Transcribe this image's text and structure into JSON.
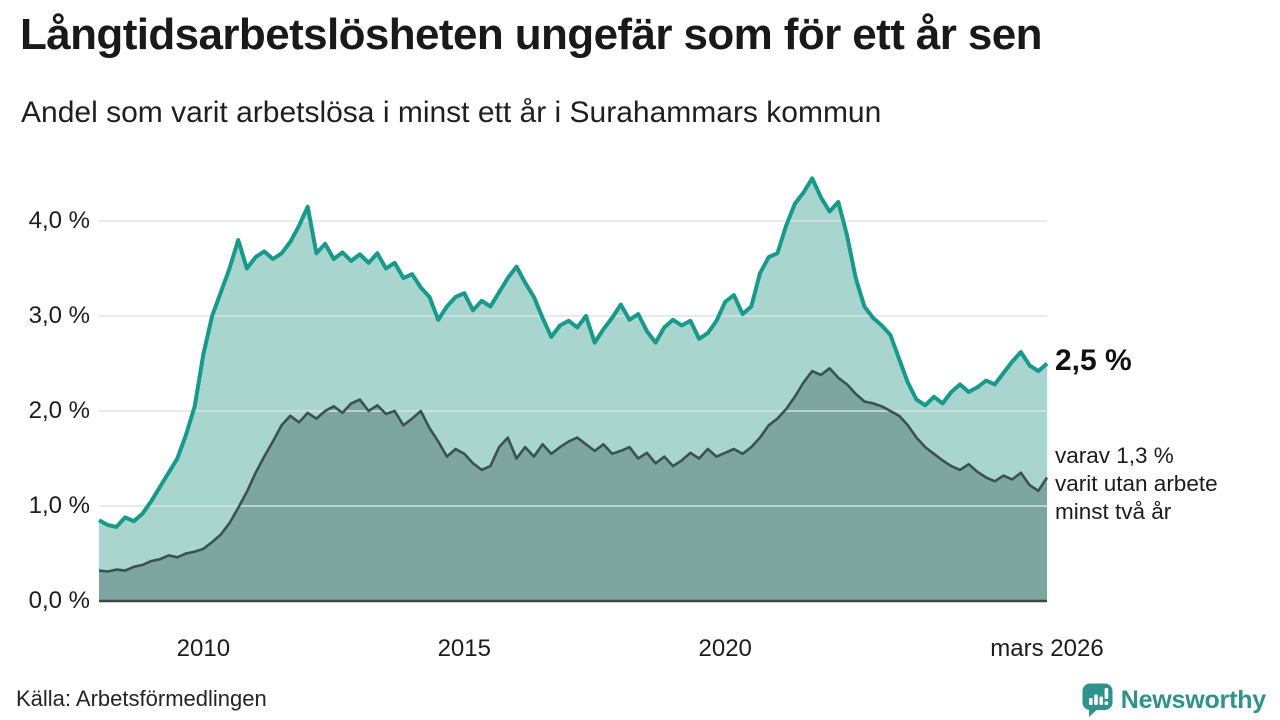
{
  "header": {
    "title": "Långtidsarbetslösheten ungefär som för ett år sen",
    "subtitle": "Andel som varit arbetslösa i minst ett år i Surahammars kommun"
  },
  "annotations": {
    "latest_value": "2,5 %",
    "secondary_line1": "varav 1,3 %",
    "secondary_line2": "varit utan arbete",
    "secondary_line3": "minst två år"
  },
  "footer": {
    "source": "Källa: Arbetsförmedlingen",
    "logo_text": "Newsworthy"
  },
  "colors": {
    "line_total": "#17998c",
    "fill_total": "#a8d5ce",
    "line_two_years": "#3a534f",
    "fill_two_years": "#7ca69f",
    "baseline": "#3b4a48",
    "gridline": "rgba(222,225,230,0.7)",
    "brand_teal": "#2e938b"
  },
  "chart_data": {
    "type": "area",
    "title": "Långtidsarbetslösheten ungefär som för ett år sen",
    "subtitle": "Andel som varit arbetslösa i minst ett år i Surahammars kommun",
    "unit": "%",
    "x_start_year": 2008.0,
    "x_step_years": 0.1666667,
    "x_end_label_year": 2026.1667,
    "ylim": [
      0,
      4.7
    ],
    "grid": "horizontal-only",
    "legend_position": "right-annotations",
    "y_ticks": [
      {
        "value": 0,
        "label": "0,0 %"
      },
      {
        "value": 1,
        "label": "1,0 %"
      },
      {
        "value": 2,
        "label": "2,0 %"
      },
      {
        "value": 3,
        "label": "3,0 %"
      },
      {
        "value": 4,
        "label": "4,0 %"
      }
    ],
    "x_ticks": [
      {
        "year": 2010,
        "label": "2010"
      },
      {
        "year": 2015,
        "label": "2015"
      },
      {
        "year": 2020,
        "label": "2020"
      },
      {
        "year": 2026.1667,
        "label": "mars 2026"
      }
    ],
    "series": [
      {
        "name": "Andel arbetslösa minst ett år",
        "end_label": "2,5 %",
        "end_value": 2.5,
        "values": [
          0.85,
          0.8,
          0.78,
          0.88,
          0.84,
          0.92,
          1.05,
          1.2,
          1.35,
          1.5,
          1.75,
          2.05,
          2.6,
          3.0,
          3.25,
          3.5,
          3.8,
          3.5,
          3.62,
          3.68,
          3.6,
          3.66,
          3.78,
          3.95,
          4.15,
          3.66,
          3.76,
          3.6,
          3.67,
          3.58,
          3.65,
          3.56,
          3.66,
          3.5,
          3.56,
          3.4,
          3.44,
          3.3,
          3.2,
          2.96,
          3.1,
          3.2,
          3.24,
          3.06,
          3.16,
          3.1,
          3.25,
          3.4,
          3.52,
          3.35,
          3.2,
          2.98,
          2.78,
          2.9,
          2.95,
          2.88,
          3.0,
          2.72,
          2.86,
          2.98,
          3.12,
          2.96,
          3.02,
          2.84,
          2.72,
          2.88,
          2.96,
          2.9,
          2.95,
          2.76,
          2.82,
          2.95,
          3.15,
          3.22,
          3.02,
          3.1,
          3.45,
          3.62,
          3.66,
          3.95,
          4.18,
          4.3,
          4.45,
          4.25,
          4.1,
          4.2,
          3.85,
          3.4,
          3.1,
          2.98,
          2.9,
          2.8,
          2.55,
          2.3,
          2.12,
          2.06,
          2.15,
          2.08,
          2.2,
          2.28,
          2.2,
          2.25,
          2.32,
          2.28,
          2.4,
          2.52,
          2.62,
          2.48,
          2.42,
          2.5
        ]
      },
      {
        "name": "varav utan arbete minst två år",
        "end_label": "varav 1,3 % varit utan arbete minst två år",
        "end_value": 1.3,
        "values": [
          0.32,
          0.31,
          0.33,
          0.32,
          0.36,
          0.38,
          0.42,
          0.44,
          0.48,
          0.46,
          0.5,
          0.52,
          0.55,
          0.62,
          0.7,
          0.82,
          0.98,
          1.15,
          1.35,
          1.52,
          1.68,
          1.85,
          1.95,
          1.88,
          1.98,
          1.92,
          2.0,
          2.05,
          1.98,
          2.08,
          2.12,
          2.0,
          2.06,
          1.97,
          2.0,
          1.85,
          1.92,
          2.0,
          1.82,
          1.68,
          1.52,
          1.6,
          1.55,
          1.45,
          1.38,
          1.42,
          1.62,
          1.72,
          1.5,
          1.62,
          1.52,
          1.65,
          1.55,
          1.62,
          1.68,
          1.72,
          1.65,
          1.58,
          1.65,
          1.55,
          1.58,
          1.62,
          1.5,
          1.56,
          1.45,
          1.52,
          1.42,
          1.48,
          1.56,
          1.5,
          1.6,
          1.52,
          1.56,
          1.6,
          1.55,
          1.62,
          1.72,
          1.85,
          1.92,
          2.02,
          2.15,
          2.3,
          2.42,
          2.38,
          2.45,
          2.35,
          2.28,
          2.18,
          2.1,
          2.08,
          2.05,
          2.0,
          1.95,
          1.85,
          1.72,
          1.62,
          1.55,
          1.48,
          1.42,
          1.38,
          1.44,
          1.36,
          1.3,
          1.26,
          1.32,
          1.28,
          1.35,
          1.22,
          1.16,
          1.3
        ]
      }
    ]
  }
}
